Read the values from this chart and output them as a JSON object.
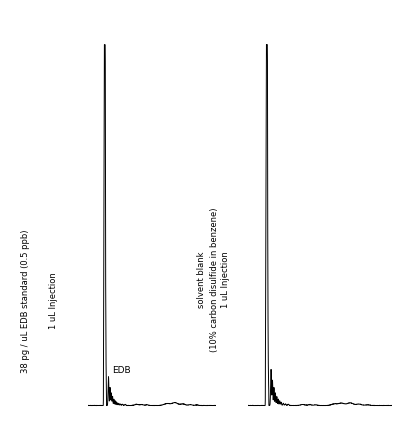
{
  "background_color": "#ffffff",
  "line_color": "#000000",
  "left_label_line1": "1 uL Injection",
  "left_label_line2": "38 pg / uL EDB standard (0.5 ppb)",
  "right_label_line1": "1 uL Injection",
  "right_label_line2": "solvent blank",
  "right_label_line3": "(10% carbon disulfide in benzene)",
  "edb_label": "EDB",
  "figsize": [
    4.0,
    4.3
  ],
  "dpi": 100
}
